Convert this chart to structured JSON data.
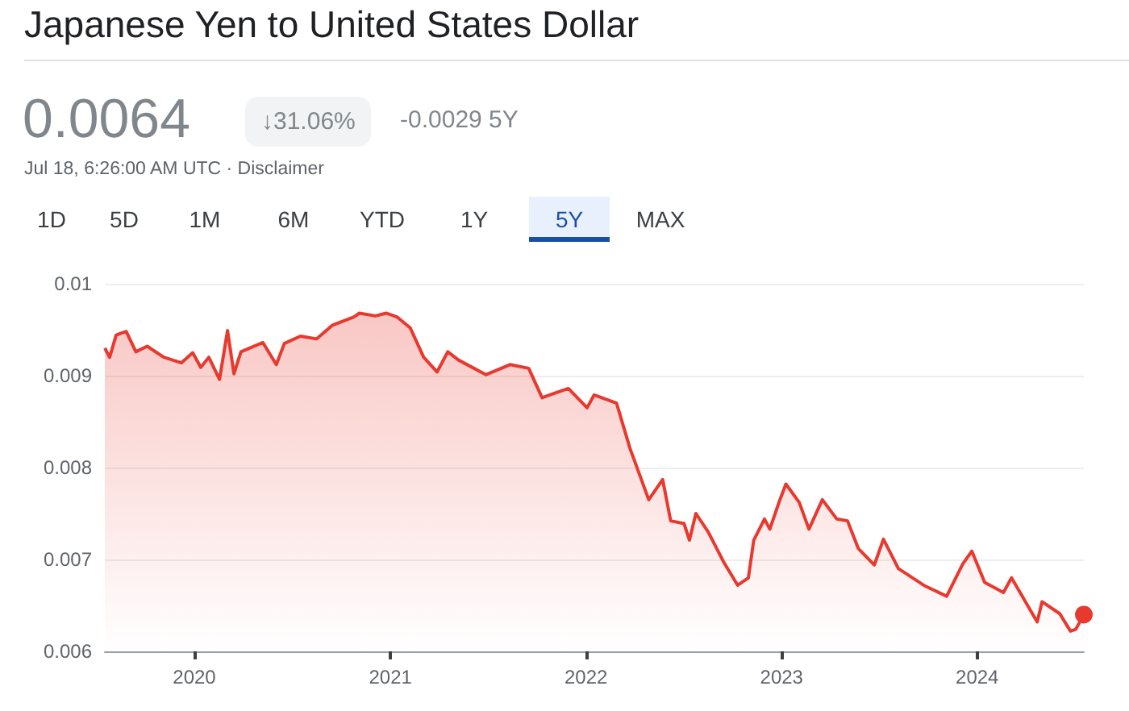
{
  "chart_data": {
    "type": "area",
    "title": "Japanese Yen to United States Dollar",
    "annotations": [
      "0.0064",
      "↓31.06%",
      "-0.0029 5Y",
      "Jul 18, 6:26:00 AM UTC · Disclaimer",
      "1D",
      "5D",
      "1M",
      "6M",
      "YTD",
      "1Y",
      "5Y",
      "MAX"
    ],
    "x": [
      "2019-07-18",
      "2019-07-27",
      "2019-08-08",
      "2019-08-16",
      "2019-08-27",
      "2019-09-14",
      "2019-10-05",
      "2019-11-05",
      "2019-12-08",
      "2019-12-29",
      "2020-01-13",
      "2020-01-28",
      "2020-02-17",
      "2020-03-03",
      "2020-03-15",
      "2020-03-28",
      "2020-05-08",
      "2020-06-02",
      "2020-06-17",
      "2020-07-17",
      "2020-08-16",
      "2020-09-15",
      "2020-10-25",
      "2020-11-04",
      "2020-12-04",
      "2020-12-24",
      "2021-01-13",
      "2021-02-07",
      "2021-03-04",
      "2021-03-29",
      "2021-04-18",
      "2021-05-08",
      "2021-06-28",
      "2021-08-12",
      "2021-09-16",
      "2021-10-11",
      "2021-11-04",
      "2021-11-29",
      "2022-01-03",
      "2022-01-16",
      "2022-02-27",
      "2022-03-24",
      "2022-04-28",
      "2022-05-24",
      "2022-06-08",
      "2022-07-03",
      "2022-07-13",
      "2022-07-25",
      "2022-08-17",
      "2022-09-16",
      "2022-10-11",
      "2022-10-31",
      "2022-11-10",
      "2022-11-30",
      "2022-12-10",
      "2022-12-27",
      "2023-01-09",
      "2023-02-03",
      "2023-02-21",
      "2023-03-18",
      "2023-04-14",
      "2023-05-04",
      "2023-05-24",
      "2023-06-23",
      "2023-07-10",
      "2023-08-07",
      "2023-09-26",
      "2023-11-05",
      "2023-12-05",
      "2023-12-22",
      "2024-01-15",
      "2024-02-19",
      "2024-03-05",
      "2024-03-25",
      "2024-04-22",
      "2024-05-01",
      "2024-06-03",
      "2024-06-23",
      "2024-07-03",
      "2024-07-18"
    ],
    "series": [
      {
        "color": "#e8392f",
        "values": [
          0.0093,
          0.0092,
          0.00944,
          0.00946,
          0.00948,
          0.00926,
          0.00932,
          0.0092,
          0.00914,
          0.00925,
          0.00909,
          0.0092,
          0.00896,
          0.00949,
          0.00902,
          0.00926,
          0.00936,
          0.00912,
          0.00935,
          0.00943,
          0.0094,
          0.00955,
          0.00964,
          0.00968,
          0.00965,
          0.00968,
          0.00964,
          0.00952,
          0.0092,
          0.00904,
          0.00926,
          0.00917,
          0.00901,
          0.00912,
          0.00908,
          0.00876,
          0.00881,
          0.00886,
          0.00865,
          0.00879,
          0.0087,
          0.00821,
          0.00765,
          0.00787,
          0.00742,
          0.00739,
          0.00721,
          0.0075,
          0.0073,
          0.00696,
          0.00672,
          0.0068,
          0.00721,
          0.00744,
          0.00733,
          0.00762,
          0.00782,
          0.00762,
          0.00733,
          0.00765,
          0.00744,
          0.00742,
          0.00712,
          0.00694,
          0.00722,
          0.0069,
          0.00671,
          0.0066,
          0.00695,
          0.00709,
          0.00675,
          0.00664,
          0.0068,
          0.0066,
          0.00632,
          0.00654,
          0.00641,
          0.00622,
          0.00624,
          0.0064
        ]
      }
    ],
    "xlim": [
      "2019-07-18",
      "2024-07-18"
    ],
    "xticks": [
      "2020",
      "2021",
      "2022",
      "2023",
      "2024"
    ],
    "ylim": [
      0.006,
      0.01
    ],
    "yticks": [
      0.006,
      0.007,
      0.008,
      0.009,
      0.01
    ],
    "grid": "y"
  }
}
